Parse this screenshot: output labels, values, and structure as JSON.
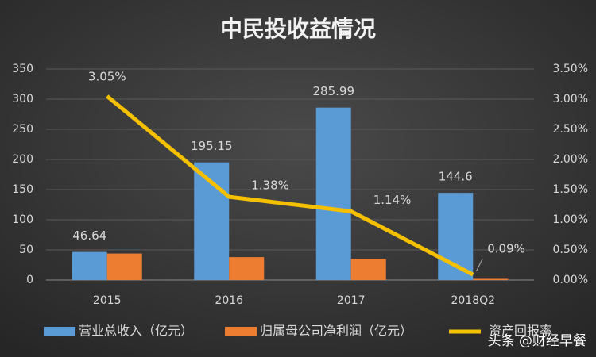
{
  "chart_data": {
    "type": "bar",
    "title": "中民投收益情况",
    "categories": [
      "2015",
      "2016",
      "2017",
      "2018Q2"
    ],
    "series": [
      {
        "name": "营业总收入（亿元）",
        "type": "bar",
        "color": "#5b9bd5",
        "values": [
          46.64,
          195.15,
          285.99,
          144.6
        ],
        "show_labels": true
      },
      {
        "name": "归属母公司净利润（亿元）",
        "type": "bar",
        "color": "#ed7d31",
        "values": [
          44,
          38,
          35,
          2
        ],
        "show_labels": false
      },
      {
        "name": "资产回报率",
        "type": "line",
        "axis": "y2",
        "color": "#f5c000",
        "values": [
          3.05,
          1.38,
          1.14,
          0.09
        ],
        "value_labels": [
          "3.05%",
          "1.38%",
          "1.14%",
          "0.09%"
        ]
      }
    ],
    "ylim": [
      0,
      350
    ],
    "yticks": [
      0,
      50,
      100,
      150,
      200,
      250,
      300,
      350
    ],
    "y2lim": [
      0,
      3.5
    ],
    "y2ticks": [
      {
        "value": 0,
        "label": "0.00%"
      },
      {
        "value": 0.5,
        "label": "0.50%"
      },
      {
        "value": 1,
        "label": "1.00%"
      },
      {
        "value": 1.5,
        "label": "1.50%"
      },
      {
        "value": 2,
        "label": "2.00%"
      },
      {
        "value": 2.5,
        "label": "2.50%"
      },
      {
        "value": 3,
        "label": "3.00%"
      },
      {
        "value": 3.5,
        "label": "3.50%"
      }
    ],
    "grid": true,
    "legend": "bottom",
    "watermark": "头条 @财经早餐"
  }
}
